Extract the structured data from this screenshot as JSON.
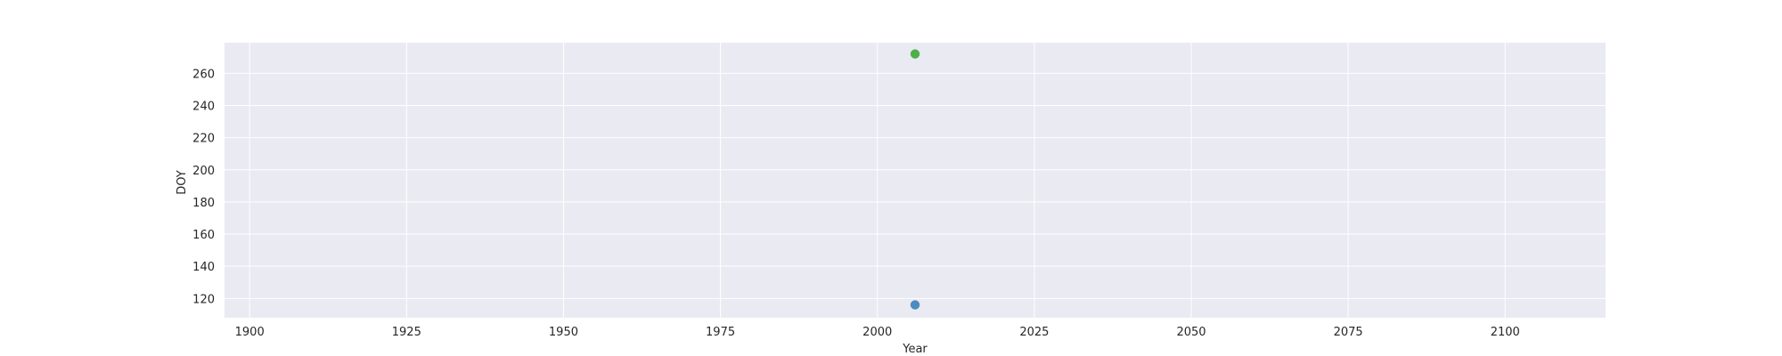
{
  "chart_data": {
    "type": "scatter",
    "title": "",
    "xlabel": "Year",
    "ylabel": "DOY",
    "xlim": [
      1896,
      2116
    ],
    "ylim": [
      108,
      279
    ],
    "grid": true,
    "xticks": [
      1900,
      1925,
      1950,
      1975,
      2000,
      2025,
      2050,
      2075,
      2100
    ],
    "yticks": [
      120,
      140,
      160,
      180,
      200,
      220,
      240,
      260
    ],
    "series": [
      {
        "color": "#4c8cbf",
        "points": [
          {
            "x": 2006,
            "y": 116
          }
        ]
      },
      {
        "color": "#4daf4a",
        "points": [
          {
            "x": 2006,
            "y": 272
          }
        ]
      }
    ],
    "colors": {
      "plot_background": "#eaeaf2",
      "grid": "#ffffff",
      "text": "#262626"
    }
  }
}
